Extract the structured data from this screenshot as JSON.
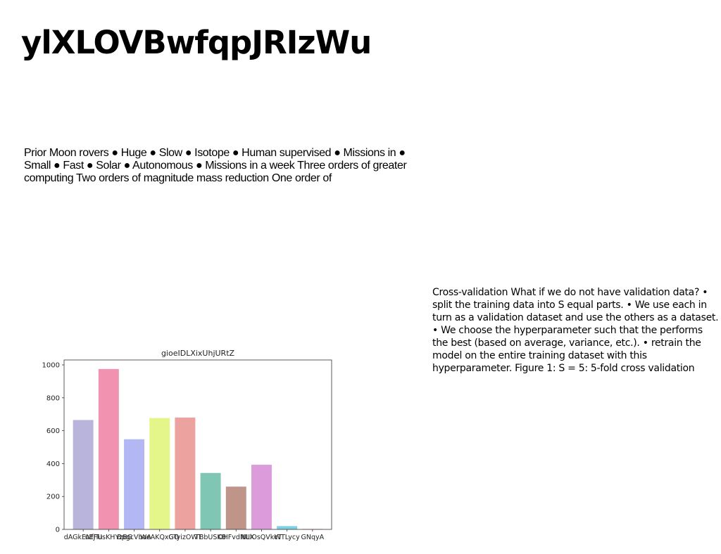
{
  "title": "ylXLOVBwfqpJRIzWu",
  "left_text": "Prior Moon rovers ● Huge ● Slow ● Isotope ● Human supervised ● Missions in ● Small ● Fast ● Solar ● Autonomous ● Missions in a week Three orders of greater computing Two orders of magnitude mass reduction One order of",
  "right_text": "Cross-validation What if we do not have validation data? • split the training data into S equal parts. • We use each in turn as a validation dataset and use the others as a dataset. • We choose the hyperparameter such that the performs the best (based on average, variance, etc.). • retrain the model on the entire training dataset with this hyperparameter. Figure 1: S = 5: 5-fold cross validation",
  "chart_data": {
    "type": "bar",
    "title": "gioeIDLXixUhjURtZ",
    "xlabel": "",
    "ylabel": "",
    "categories": [
      "dAGkENfjTu",
      "uEFUsKHYzBG",
      "BpgcVbaA",
      "WeAKQxGO",
      "GTyizOWT",
      "TBbUSKB",
      "OHFvdNUX",
      "NLlOsQVkeT",
      "WTLycy",
      "GNqyA"
    ],
    "values": [
      665,
      975,
      548,
      677,
      680,
      343,
      260,
      393,
      20,
      3
    ],
    "colors": [
      "#b9b4dc",
      "#f192b0",
      "#b3b8f4",
      "#e4f58a",
      "#eca29f",
      "#7fc6b4",
      "#bf958a",
      "#dc9cdc",
      "#7ed0e6",
      "#f3b7c4"
    ],
    "ylim": [
      0,
      1030
    ],
    "yticks": [
      0,
      200,
      400,
      600,
      800,
      1000
    ],
    "grid": false,
    "legend": "none"
  }
}
